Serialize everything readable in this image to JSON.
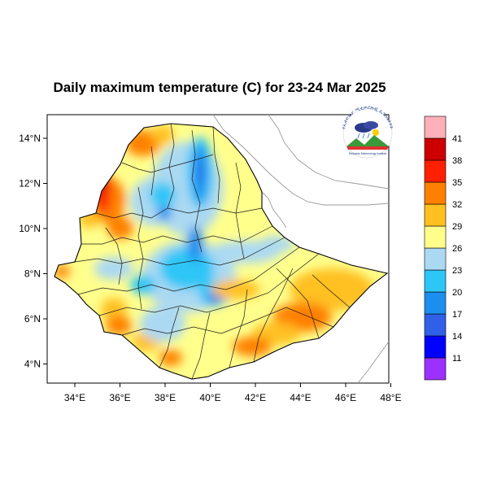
{
  "title": "Daily maximum temperature (C) for 23-24 Mar 2025",
  "x_ticks": [
    "34°E",
    "36°E",
    "38°E",
    "40°E",
    "42°E",
    "44°E",
    "46°E",
    "48°E"
  ],
  "y_ticks": [
    "14°N",
    "12°N",
    "10°N",
    "8°N",
    "6°N",
    "4°N"
  ],
  "colorbar": {
    "colors": [
      "#9b30ff",
      "#0000ff",
      "#3060e8",
      "#1c8ef0",
      "#2ec6f7",
      "#abd9f2",
      "#ffff8c",
      "#ffc020",
      "#ff8000",
      "#ff2000",
      "#cc0000",
      "#ffb0b8"
    ],
    "labels": [
      "11",
      "14",
      "17",
      "20",
      "23",
      "26",
      "29",
      "32",
      "35",
      "38",
      "41"
    ]
  },
  "logo": {
    "arc_text": "የኢትዮጵያ ሚቲዎሮሎጂ ኢንስቲትዩት",
    "name_text": "Ethiopian Meteorology Institute"
  }
}
